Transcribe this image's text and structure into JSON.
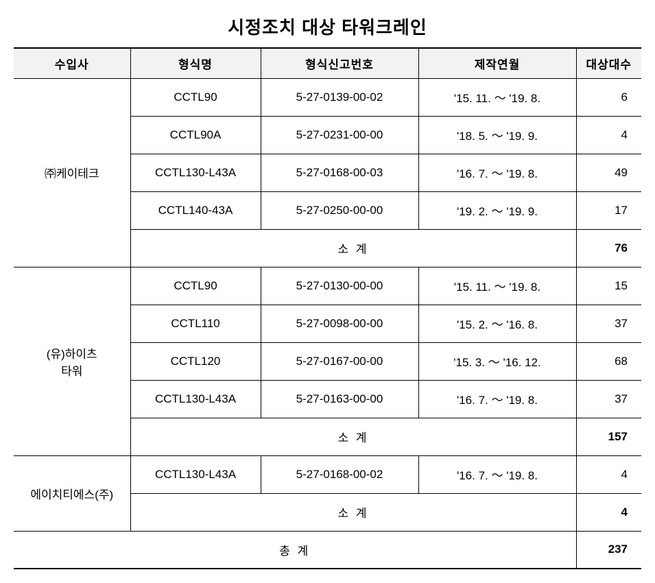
{
  "title": "시정조치 대상 타워크레인",
  "columns": {
    "importer": "수입사",
    "model": "형식명",
    "regno": "형식신고번호",
    "date": "제작연월",
    "count": "대상대수"
  },
  "groups": [
    {
      "importer": "㈜케이테크",
      "rows": [
        {
          "model": "CCTL90",
          "regno": "5-27-0139-00-02",
          "date": "'15. 11. ～ '19. 8.",
          "count": "6"
        },
        {
          "model": "CCTL90A",
          "regno": "5-27-0231-00-00",
          "date": "'18. 5. ～ '19. 9.",
          "count": "4"
        },
        {
          "model": "CCTL130-L43A",
          "regno": "5-27-0168-00-03",
          "date": "'16. 7. ～ '19. 8.",
          "count": "49"
        },
        {
          "model": "CCTL140-43A",
          "regno": "5-27-0250-00-00",
          "date": "'19. 2. ～ '19. 9.",
          "count": "17"
        }
      ],
      "subtotal_label": "소 계",
      "subtotal": "76"
    },
    {
      "importer": "(유)하이츠\n타워",
      "rows": [
        {
          "model": "CCTL90",
          "regno": "5-27-0130-00-00",
          "date": "'15. 11. ～ '19. 8.",
          "count": "15"
        },
        {
          "model": "CCTL110",
          "regno": "5-27-0098-00-00",
          "date": "'15. 2. ～ '16. 8.",
          "count": "37"
        },
        {
          "model": "CCTL120",
          "regno": "5-27-0167-00-00",
          "date": "'15. 3. ～ '16. 12.",
          "count": "68"
        },
        {
          "model": "CCTL130-L43A",
          "regno": "5-27-0163-00-00",
          "date": "'16. 7. ～ '19. 8.",
          "count": "37"
        }
      ],
      "subtotal_label": "소 계",
      "subtotal": "157"
    },
    {
      "importer": "에이치티에스(주)",
      "rows": [
        {
          "model": "CCTL130-L43A",
          "regno": "5-27-0168-00-02",
          "date": "'16. 7. ～ '19. 8.",
          "count": "4"
        }
      ],
      "subtotal_label": "소 계",
      "subtotal": "4"
    }
  ],
  "grandtotal_label": "총 계",
  "grandtotal": "237"
}
